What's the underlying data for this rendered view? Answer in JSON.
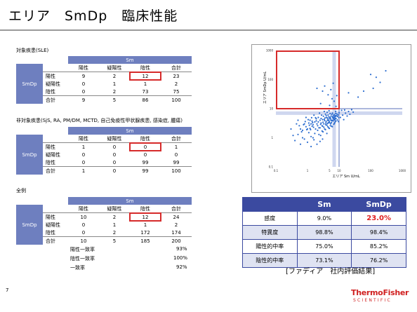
{
  "slide": {
    "title": "エリア　SmDp　臨床性能",
    "page_number": "7",
    "note": "[ファディア　社内評価結果]",
    "logo_line1": "ThermoFisher",
    "logo_line2": "SCIENTIFIC"
  },
  "colors": {
    "header_blue": "#6e7fbf",
    "table_blue": "#3b4aa0",
    "highlight_red": "#d62a2a"
  },
  "tables": [
    {
      "heading": "対象疾患(SLE)",
      "col_group": "Sm",
      "row_group": "SmDp",
      "columns": [
        "陽性",
        "疑陽性",
        "陰性",
        "合計"
      ],
      "rows": [
        {
          "label": "陽性",
          "values": [
            "9",
            "2",
            "12",
            "23"
          ]
        },
        {
          "label": "疑陽性",
          "values": [
            "0",
            "1",
            "1",
            "2"
          ]
        },
        {
          "label": "陰性",
          "values": [
            "0",
            "2",
            "73",
            "75"
          ]
        },
        {
          "label": "合計",
          "values": [
            "9",
            "5",
            "86",
            "100"
          ]
        }
      ]
    },
    {
      "heading": "非対象疾患(SjS, RA, PM/DM, MCTD, 自己免疫性甲状腺疾患, 感染症, 腫瘍)",
      "col_group": "Sm",
      "row_group": "SmDp",
      "columns": [
        "陽性",
        "疑陽性",
        "陰性",
        "合計"
      ],
      "rows": [
        {
          "label": "陽性",
          "values": [
            "1",
            "0",
            "0",
            "1"
          ]
        },
        {
          "label": "疑陽性",
          "values": [
            "0",
            "0",
            "0",
            "0"
          ]
        },
        {
          "label": "陰性",
          "values": [
            "0",
            "0",
            "99",
            "99"
          ]
        },
        {
          "label": "合計",
          "values": [
            "1",
            "0",
            "99",
            "100"
          ]
        }
      ]
    },
    {
      "heading": "全例",
      "col_group": "Sm",
      "row_group": "SmDp",
      "columns": [
        "陽性",
        "疑陽性",
        "陰性",
        "合計"
      ],
      "rows": [
        {
          "label": "陽性",
          "values": [
            "10",
            "2",
            "12",
            "24"
          ]
        },
        {
          "label": "疑陽性",
          "values": [
            "0",
            "1",
            "1",
            "2"
          ]
        },
        {
          "label": "陰性",
          "values": [
            "0",
            "2",
            "172",
            "174"
          ]
        },
        {
          "label": "合計",
          "values": [
            "10",
            "5",
            "185",
            "200"
          ]
        }
      ]
    }
  ],
  "agreement": [
    {
      "label": "陽性一致率",
      "value": "93%"
    },
    {
      "label": "陰性一致率",
      "value": "100%"
    },
    {
      "label": "一致率",
      "value": "92%"
    }
  ],
  "results": {
    "columns": [
      "",
      "Sm",
      "SmDp"
    ],
    "rows": [
      {
        "label": "感度",
        "sm": "9.0%",
        "smdp": "23.0%"
      },
      {
        "label": "特異度",
        "sm": "98.8%",
        "smdp": "98.4%"
      },
      {
        "label": "陽性的中率",
        "sm": "75.0%",
        "smdp": "85.2%"
      },
      {
        "label": "陰性的中率",
        "sm": "73.1%",
        "smdp": "76.2%"
      }
    ]
  },
  "chart_data": {
    "type": "scatter",
    "xlabel": "エリア Sm U/mL",
    "ylabel": "エリア SmDp U/mL",
    "x_scale": "log",
    "y_scale": "log",
    "xlim": [
      0.1,
      1000
    ],
    "ylim": [
      0.1,
      1000
    ],
    "xticks": [
      "0.1",
      "1",
      "5",
      "10",
      "100",
      "1000"
    ],
    "yticks": [
      "0.1",
      "1",
      "10",
      "100",
      "1000"
    ],
    "cutoff_lines": [
      {
        "axis": "x",
        "value": 10
      },
      {
        "axis": "y",
        "value": 10
      }
    ],
    "cutoff_bands": [
      {
        "axis": "x",
        "value": 7
      },
      {
        "axis": "y",
        "value": 7
      }
    ],
    "highlight_region": {
      "x": [
        0.1,
        10
      ],
      "y": [
        10,
        1000
      ]
    },
    "points": [
      [
        2.0,
        50
      ],
      [
        3.0,
        40
      ],
      [
        4.5,
        30
      ],
      [
        6.0,
        22
      ],
      [
        2.6,
        15
      ],
      [
        5.0,
        13
      ],
      [
        8.0,
        12
      ],
      [
        7.0,
        18
      ],
      [
        3.5,
        60
      ],
      [
        5.5,
        45
      ],
      [
        8.5,
        28
      ],
      [
        6.5,
        75
      ],
      [
        20,
        35
      ],
      [
        40,
        25
      ],
      [
        60,
        40
      ],
      [
        120,
        50
      ],
      [
        150,
        120
      ],
      [
        200,
        80
      ],
      [
        300,
        200
      ],
      [
        100,
        150
      ],
      [
        0.5,
        4
      ],
      [
        0.6,
        2
      ],
      [
        0.7,
        1
      ],
      [
        0.8,
        3
      ],
      [
        0.9,
        5
      ],
      [
        1.0,
        2
      ],
      [
        1.1,
        1.5
      ],
      [
        1.2,
        4
      ],
      [
        1.3,
        3
      ],
      [
        1.4,
        2.5
      ],
      [
        1.5,
        1
      ],
      [
        1.6,
        6
      ],
      [
        1.7,
        3.5
      ],
      [
        1.8,
        2
      ],
      [
        1.9,
        4.5
      ],
      [
        2.0,
        3
      ],
      [
        2.1,
        1.8
      ],
      [
        2.2,
        5
      ],
      [
        2.3,
        2.2
      ],
      [
        2.4,
        7
      ],
      [
        2.5,
        4
      ],
      [
        2.6,
        1.2
      ],
      [
        2.7,
        3.2
      ],
      [
        2.8,
        6
      ],
      [
        2.9,
        2.6
      ],
      [
        3.0,
        4.2
      ],
      [
        3.1,
        1.6
      ],
      [
        3.2,
        5.5
      ],
      [
        3.3,
        3
      ],
      [
        3.4,
        8
      ],
      [
        3.5,
        2
      ],
      [
        3.6,
        4.8
      ],
      [
        3.7,
        6.5
      ],
      [
        3.8,
        2.8
      ],
      [
        3.9,
        3.6
      ],
      [
        4.0,
        5
      ],
      [
        4.1,
        1.4
      ],
      [
        4.2,
        7.5
      ],
      [
        4.3,
        4
      ],
      [
        4.4,
        2.4
      ],
      [
        4.5,
        6
      ],
      [
        4.6,
        3.3
      ],
      [
        4.7,
        5.2
      ],
      [
        4.8,
        8.5
      ],
      [
        4.9,
        2.1
      ],
      [
        5.0,
        4.5
      ],
      [
        5.2,
        6.8
      ],
      [
        5.4,
        3
      ],
      [
        5.6,
        5.6
      ],
      [
        5.8,
        2.5
      ],
      [
        6.0,
        4
      ],
      [
        6.2,
        7
      ],
      [
        6.4,
        3.8
      ],
      [
        6.6,
        5
      ],
      [
        6.8,
        2.9
      ],
      [
        7.0,
        6.2
      ],
      [
        7.2,
        4.4
      ],
      [
        7.4,
        3.4
      ],
      [
        7.6,
        5.8
      ],
      [
        7.8,
        8
      ],
      [
        8.0,
        4.6
      ],
      [
        8.5,
        6.6
      ],
      [
        9.0,
        5.4
      ],
      [
        9.5,
        3.6
      ],
      [
        10,
        7.2
      ],
      [
        11,
        5
      ],
      [
        12,
        8.8
      ],
      [
        13,
        6
      ],
      [
        14,
        4.2
      ],
      [
        15,
        9
      ],
      [
        16,
        7
      ],
      [
        18,
        5.6
      ],
      [
        20,
        8
      ],
      [
        22,
        6.4
      ],
      [
        25,
        9.2
      ],
      [
        28,
        7.6
      ],
      [
        0.4,
        0.8
      ],
      [
        0.6,
        0.6
      ],
      [
        0.8,
        0.9
      ],
      [
        1.0,
        0.7
      ],
      [
        1.3,
        0.5
      ],
      [
        1.6,
        0.85
      ],
      [
        2.0,
        0.6
      ],
      [
        2.5,
        0.75
      ],
      [
        3.0,
        0.9
      ],
      [
        0.5,
        1.3
      ],
      [
        0.7,
        1.8
      ],
      [
        0.9,
        2.4
      ],
      [
        1.1,
        3.2
      ],
      [
        1.3,
        1.1
      ],
      [
        1.5,
        2.8
      ],
      [
        1.7,
        1.4
      ],
      [
        1.9,
        3.8
      ],
      [
        2.1,
        2.6
      ],
      [
        2.3,
        1.3
      ],
      [
        2.5,
        2.2
      ],
      [
        2.7,
        4.6
      ],
      [
        2.9,
        1.7
      ],
      [
        3.1,
        3.4
      ],
      [
        3.3,
        2.3
      ],
      [
        3.5,
        3.9
      ],
      [
        3.7,
        1.9
      ],
      [
        3.9,
        5.8
      ],
      [
        4.1,
        2.7
      ],
      [
        4.3,
        3.1
      ],
      [
        4.5,
        4.4
      ],
      [
        4.7,
        2.2
      ],
      [
        4.9,
        3.7
      ],
      [
        5.1,
        5.1
      ],
      [
        5.3,
        2.6
      ],
      [
        5.5,
        4.1
      ],
      [
        5.7,
        3.3
      ],
      [
        5.9,
        6.4
      ],
      [
        6.1,
        2.4
      ],
      [
        6.3,
        4.9
      ],
      [
        6.5,
        3.9
      ],
      [
        6.7,
        5.9
      ],
      [
        6.9,
        4.3
      ],
      [
        7.1,
        3.1
      ],
      [
        7.3,
        5.3
      ],
      [
        7.5,
        4.7
      ],
      [
        7.7,
        6.9
      ],
      [
        7.9,
        3.7
      ],
      [
        8.2,
        5.7
      ],
      [
        8.8,
        4.1
      ],
      [
        9.2,
        6.1
      ],
      [
        9.8,
        4.9
      ],
      [
        1.2,
        2.1
      ],
      [
        1.4,
        3.7
      ],
      [
        1.8,
        4.9
      ],
      [
        2.2,
        3.5
      ],
      [
        2.6,
        2.9
      ],
      [
        3.0,
        2.5
      ],
      [
        3.4,
        4.3
      ],
      [
        3.8,
        3.2
      ],
      [
        4.2,
        4.8
      ],
      [
        4.6,
        3.9
      ],
      [
        5.0,
        3.3
      ],
      [
        5.4,
        4.7
      ],
      [
        5.8,
        3.8
      ],
      [
        6.2,
        5.3
      ],
      [
        6.6,
        4.6
      ],
      [
        7.0,
        5.1
      ],
      [
        7.4,
        4.1
      ],
      [
        7.8,
        5.5
      ],
      [
        0.3,
        2.0
      ],
      [
        0.35,
        1.2
      ],
      [
        0.45,
        3.0
      ],
      [
        0.55,
        2.6
      ],
      [
        0.65,
        1.6
      ],
      [
        0.75,
        2.8
      ],
      [
        0.85,
        3.6
      ],
      [
        0.95,
        1.9
      ],
      [
        1.05,
        4.2
      ],
      [
        1.15,
        2.7
      ],
      [
        1.25,
        1.9
      ],
      [
        1.35,
        4.9
      ],
      [
        1.45,
        3.3
      ],
      [
        1.55,
        2.3
      ]
    ]
  }
}
